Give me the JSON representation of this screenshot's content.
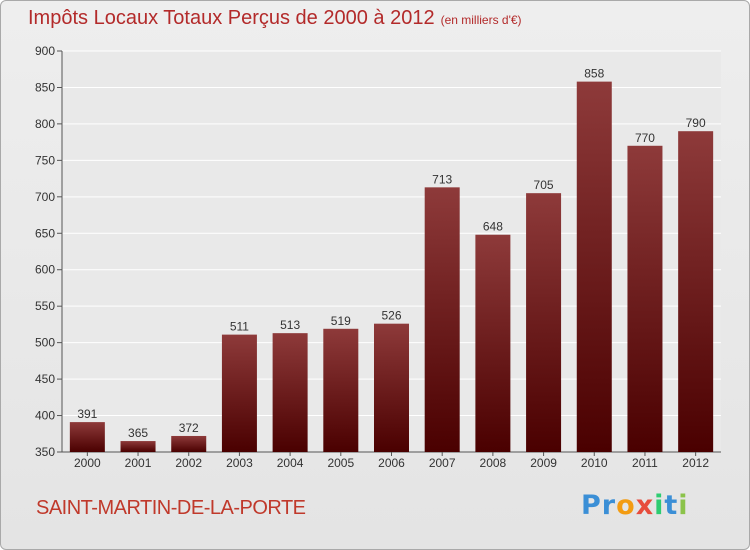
{
  "title": "Impôts Locaux Totaux Perçus de 2000 à 2012",
  "subtitle": "(en milliers d'€)",
  "commune": "SAINT-MARTIN-DE-LA-PORTE",
  "logo": "Proxiti",
  "colors": {
    "title": "#b32a2a",
    "bar_top": "#8e3a3a",
    "bar_bottom": "#4a0000",
    "commune": "#c0392b"
  },
  "chart_data": {
    "type": "bar",
    "title": "Impôts Locaux Totaux Perçus de 2000 à 2012",
    "categories": [
      "2000",
      "2001",
      "2002",
      "2003",
      "2004",
      "2005",
      "2006",
      "2007",
      "2008",
      "2009",
      "2010",
      "2011",
      "2012"
    ],
    "values": [
      391,
      365,
      372,
      511,
      513,
      519,
      526,
      713,
      648,
      705,
      858,
      770,
      790
    ],
    "xlabel": "",
    "ylabel": "",
    "ylim": [
      350,
      900
    ],
    "yticks": [
      350,
      400,
      450,
      500,
      550,
      600,
      650,
      700,
      750,
      800,
      850,
      900
    ],
    "grid": true
  }
}
